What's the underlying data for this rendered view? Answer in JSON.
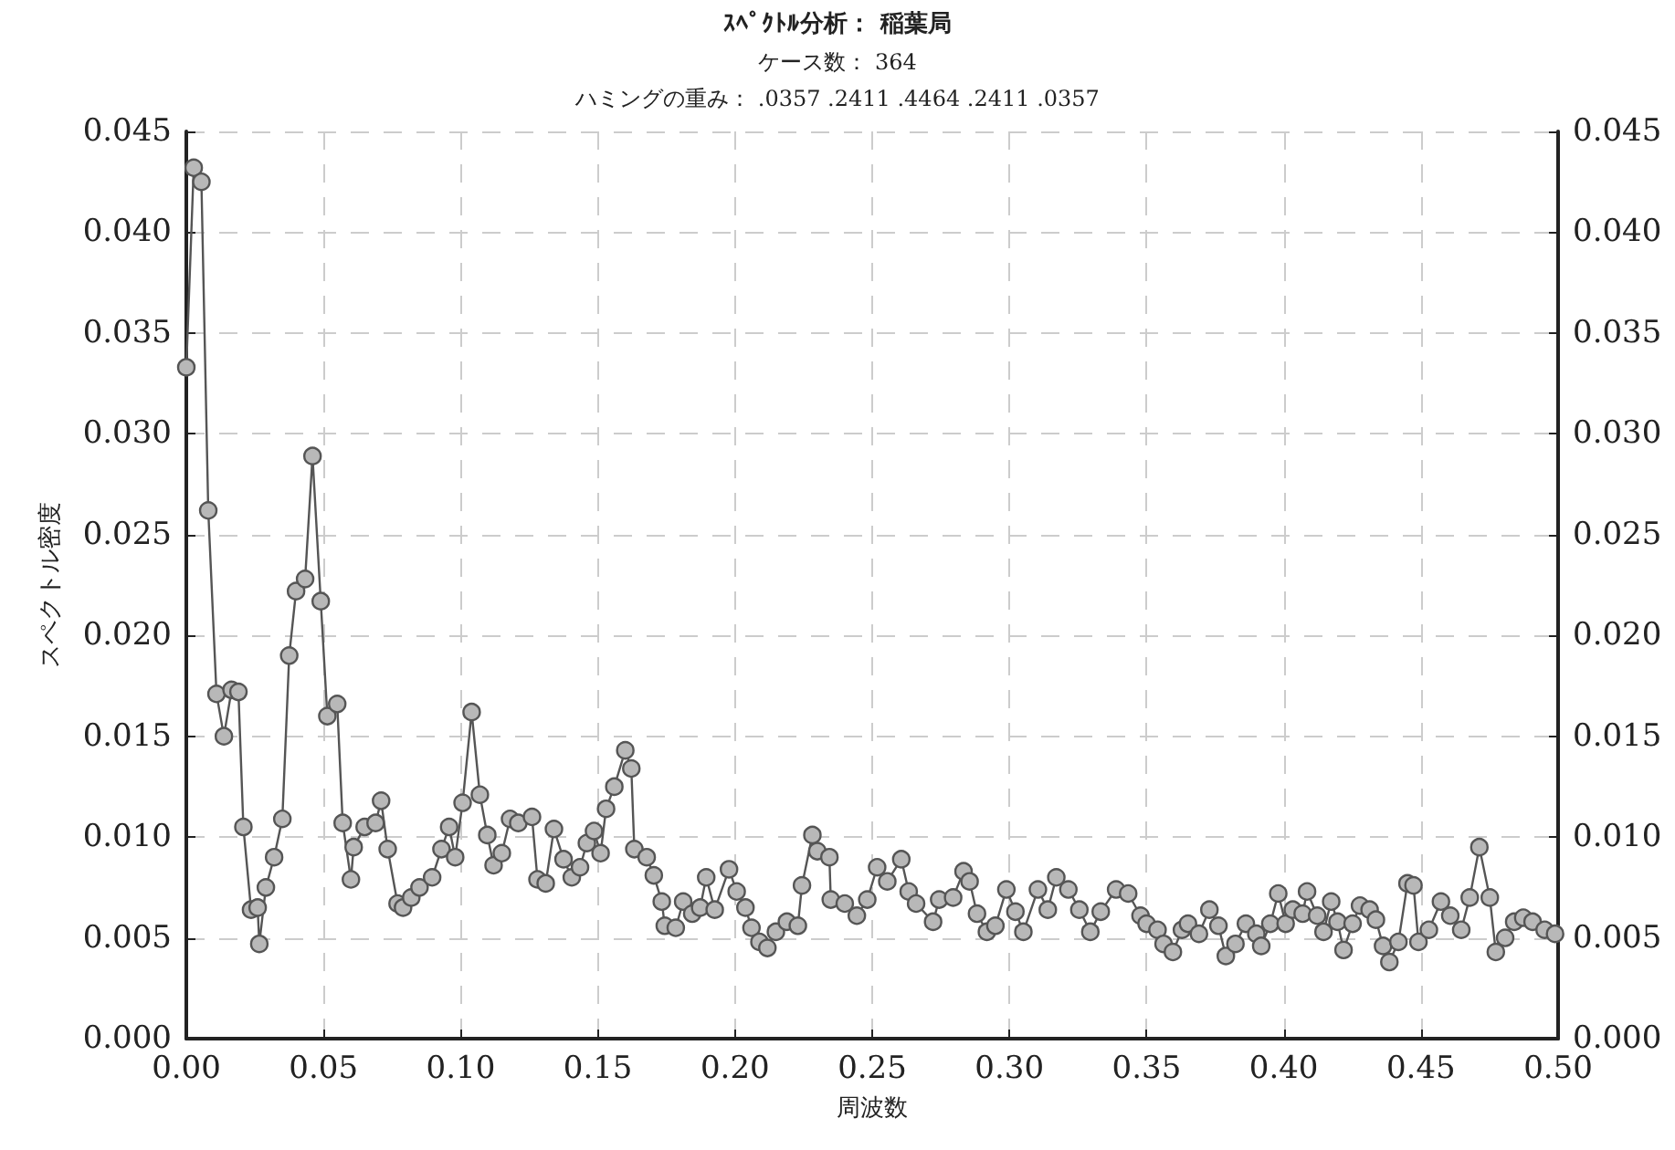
{
  "chart_data": {
    "type": "line",
    "title": "ｽﾍﾟｸﾄﾙ分析： 稲葉局",
    "subtitle": "ケース数： 364\nハミングの重み： .0357 .2411 .4464 .2411 .0357",
    "xlabel": "周波数",
    "ylabel": "スペクトル密度",
    "series": [
      {
        "color": "#555555",
        "x": [
          0.0,
          0.0027,
          0.0055,
          0.008,
          0.011,
          0.0137,
          0.0165,
          0.019,
          0.0208,
          0.0236,
          0.026,
          0.0266,
          0.029,
          0.032,
          0.035,
          0.0375,
          0.04,
          0.0433,
          0.046,
          0.049,
          0.0514,
          0.055,
          0.057,
          0.06,
          0.061,
          0.065,
          0.069,
          0.071,
          0.0734,
          0.077,
          0.079,
          0.082,
          0.085,
          0.0896,
          0.093,
          0.0958,
          0.098,
          0.1007,
          0.104,
          0.107,
          0.1097,
          0.112,
          0.115,
          0.118,
          0.121,
          0.126,
          0.128,
          0.131,
          0.134,
          0.1375,
          0.1405,
          0.1435,
          0.146,
          0.1486,
          0.151,
          0.153,
          0.156,
          0.16,
          0.1622,
          0.1633,
          0.1678,
          0.1704,
          0.1733,
          0.1744,
          0.1784,
          0.1811,
          0.1844,
          0.1873,
          0.1895,
          0.1926,
          0.1978,
          0.2006,
          0.2038,
          0.206,
          0.2089,
          0.2118,
          0.2149,
          0.2189,
          0.2229,
          0.2244,
          0.2282,
          0.23,
          0.2344,
          0.2349,
          0.24,
          0.2444,
          0.2482,
          0.2518,
          0.2555,
          0.2606,
          0.2633,
          0.266,
          0.2722,
          0.2744,
          0.2795,
          0.2833,
          0.2855,
          0.2882,
          0.2918,
          0.2949,
          0.2989,
          0.3022,
          0.3051,
          0.3104,
          0.314,
          0.3171,
          0.3215,
          0.3255,
          0.3295,
          0.3333,
          0.3389,
          0.3433,
          0.3478,
          0.35,
          0.354,
          0.3562,
          0.3596,
          0.3629,
          0.3651,
          0.3691,
          0.3729,
          0.3762,
          0.3789,
          0.3824,
          0.3862,
          0.39,
          0.3918,
          0.3951,
          0.398,
          0.4007,
          0.4033,
          0.4069,
          0.4085,
          0.4122,
          0.4145,
          0.4173,
          0.4196,
          0.4218,
          0.4251,
          0.4278,
          0.4313,
          0.4336,
          0.4362,
          0.4385,
          0.4418,
          0.4451,
          0.4473,
          0.4491,
          0.4529,
          0.4573,
          0.4607,
          0.4647,
          0.4678,
          0.4713,
          0.4751,
          0.4773,
          0.4807,
          0.484,
          0.4873,
          0.4907,
          0.4951,
          0.4989
        ],
        "values": [
          0.0333,
          0.0432,
          0.0425,
          0.0262,
          0.0171,
          0.015,
          0.0173,
          0.0172,
          0.0105,
          0.0064,
          0.0065,
          0.0047,
          0.0075,
          0.009,
          0.0109,
          0.019,
          0.0222,
          0.0228,
          0.0289,
          0.0217,
          0.016,
          0.0166,
          0.0107,
          0.0079,
          0.0095,
          0.0105,
          0.0107,
          0.0118,
          0.0094,
          0.0067,
          0.0065,
          0.007,
          0.0075,
          0.008,
          0.0094,
          0.0105,
          0.009,
          0.0117,
          0.0162,
          0.0121,
          0.0101,
          0.0086,
          0.0092,
          0.0109,
          0.0107,
          0.011,
          0.0079,
          0.0077,
          0.0104,
          0.0089,
          0.008,
          0.0085,
          0.0097,
          0.0103,
          0.0092,
          0.0114,
          0.0125,
          0.0143,
          0.0134,
          0.0094,
          0.009,
          0.0081,
          0.0068,
          0.0056,
          0.0055,
          0.0068,
          0.0062,
          0.0065,
          0.008,
          0.0064,
          0.0084,
          0.0073,
          0.0065,
          0.0055,
          0.0048,
          0.0045,
          0.0053,
          0.0058,
          0.0056,
          0.0076,
          0.0101,
          0.0093,
          0.009,
          0.0069,
          0.0067,
          0.0061,
          0.0069,
          0.0085,
          0.0078,
          0.0089,
          0.0073,
          0.0067,
          0.0058,
          0.0069,
          0.007,
          0.0083,
          0.0078,
          0.0062,
          0.0053,
          0.0056,
          0.0074,
          0.0063,
          0.0053,
          0.0074,
          0.0064,
          0.008,
          0.0074,
          0.0064,
          0.0053,
          0.0063,
          0.0074,
          0.0072,
          0.0061,
          0.0057,
          0.0054,
          0.0047,
          0.0043,
          0.0054,
          0.0057,
          0.0052,
          0.0064,
          0.0056,
          0.0041,
          0.0047,
          0.0057,
          0.0052,
          0.0046,
          0.0057,
          0.0072,
          0.0057,
          0.0064,
          0.0062,
          0.0073,
          0.0061,
          0.0053,
          0.0068,
          0.0058,
          0.0044,
          0.0057,
          0.0066,
          0.0064,
          0.0059,
          0.0046,
          0.0038,
          0.0048,
          0.0077,
          0.0076,
          0.0048,
          0.0054,
          0.0068,
          0.0061,
          0.0054,
          0.007,
          0.0095,
          0.007,
          0.0043,
          0.005,
          0.0058,
          0.006,
          0.0058,
          0.0054,
          0.0052
        ]
      }
    ],
    "xlim": [
      0,
      0.5
    ],
    "xticks": [
      {
        "value": 0,
        "label": "0.00"
      },
      {
        "value": 0.05,
        "label": "0.05"
      },
      {
        "value": 0.1,
        "label": "0.10"
      },
      {
        "value": 0.15,
        "label": "0.15"
      },
      {
        "value": 0.2,
        "label": "0.20"
      },
      {
        "value": 0.25,
        "label": "0.25"
      },
      {
        "value": 0.3,
        "label": "0.30"
      },
      {
        "value": 0.35,
        "label": "0.35"
      },
      {
        "value": 0.4,
        "label": "0.40"
      },
      {
        "value": 0.45,
        "label": "0.45"
      },
      {
        "value": 0.5,
        "label": "0.50"
      }
    ],
    "ylim": [
      0,
      0.045
    ],
    "yticks": [
      {
        "value": 0,
        "label": "0.000"
      },
      {
        "value": 0.005,
        "label": "0.005"
      },
      {
        "value": 0.01,
        "label": "0.010"
      },
      {
        "value": 0.015,
        "label": "0.015"
      },
      {
        "value": 0.02,
        "label": "0.020"
      },
      {
        "value": 0.025,
        "label": "0.025"
      },
      {
        "value": 0.03,
        "label": "0.030"
      },
      {
        "value": 0.035,
        "label": "0.035"
      },
      {
        "value": 0.04,
        "label": "0.040"
      },
      {
        "value": 0.045,
        "label": "0.045"
      }
    ],
    "y2lim": [
      0,
      0.045
    ],
    "y2ticks": [
      {
        "value": 0,
        "label": "0.000"
      },
      {
        "value": 0.005,
        "label": "0.005"
      },
      {
        "value": 0.01,
        "label": "0.010"
      },
      {
        "value": 0.015,
        "label": "0.015"
      },
      {
        "value": 0.02,
        "label": "0.020"
      },
      {
        "value": 0.025,
        "label": "0.025"
      },
      {
        "value": 0.03,
        "label": "0.030"
      },
      {
        "value": 0.035,
        "label": "0.035"
      },
      {
        "value": 0.04,
        "label": "0.040"
      },
      {
        "value": 0.045,
        "label": "0.045"
      }
    ],
    "grid": true,
    "marker": "circle",
    "line_style": "solid"
  }
}
